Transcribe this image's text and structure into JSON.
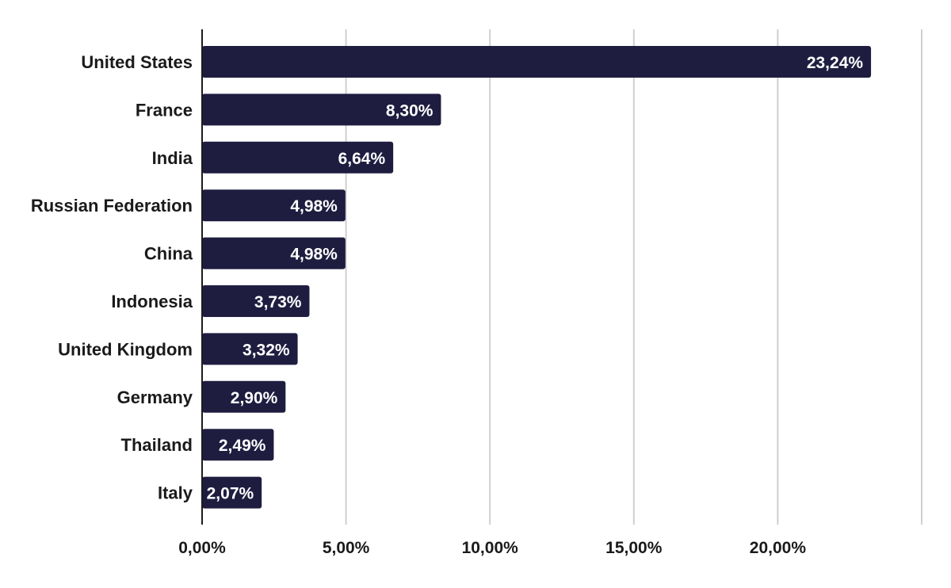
{
  "chart_data": {
    "type": "bar",
    "orientation": "horizontal",
    "categories": [
      "United States",
      "France",
      "India",
      "Russian Federation",
      "China",
      "Indonesia",
      "United Kingdom",
      "Germany",
      "Thailand",
      "Italy"
    ],
    "values": [
      23.24,
      8.3,
      6.64,
      4.98,
      4.98,
      3.73,
      3.32,
      2.9,
      2.49,
      2.07
    ],
    "value_labels": [
      "23,24%",
      "8,30%",
      "6,64%",
      "4,98%",
      "4,98%",
      "3,73%",
      "3,32%",
      "2,90%",
      "2,49%",
      "2,07%"
    ],
    "x_ticks": [
      0,
      5,
      10,
      15,
      20,
      25
    ],
    "x_tick_labels": [
      "0,00%",
      "5,00%",
      "10,00%",
      "15,00%",
      "20,00%",
      ""
    ],
    "xlim": [
      0,
      25
    ],
    "title": "",
    "xlabel": "",
    "ylabel": "",
    "grid": "vertical",
    "legend": "none",
    "colors": {
      "bar": "#1e1d40",
      "grid": "#cfcfcf",
      "axis": "#1c1c1c",
      "text": "#1a1a1a",
      "bar_label": "#ffffff"
    }
  }
}
